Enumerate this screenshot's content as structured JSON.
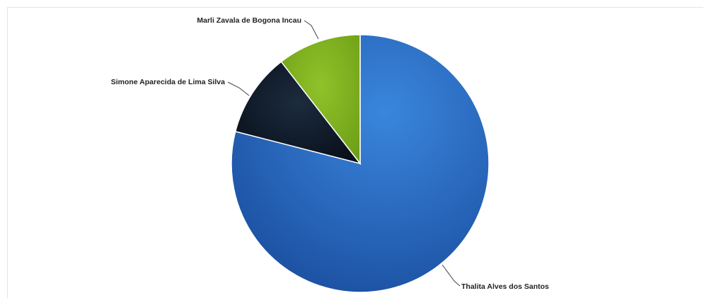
{
  "chart_data": {
    "type": "pie",
    "slices": [
      {
        "label": "Thalita Alves dos Santos",
        "value": 79,
        "color": "#1e5cb8"
      },
      {
        "label": "Simone Aparecida de Lima Silva",
        "value": 10.5,
        "color": "#0b1726"
      },
      {
        "label": "Marli Zavala de Bogona Incau",
        "value": 10.5,
        "color": "#7fb01f"
      }
    ]
  }
}
